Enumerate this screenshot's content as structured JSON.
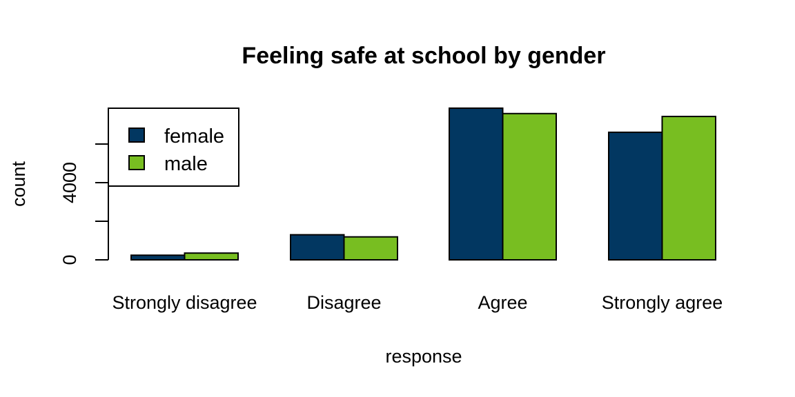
{
  "chart_data": {
    "type": "bar",
    "layout": "grouped",
    "title": "Feeling safe at school by gender",
    "xlabel": "response",
    "ylabel": "count",
    "categories": [
      "Strongly disagree",
      "Disagree",
      "Agree",
      "Strongly agree"
    ],
    "series": [
      {
        "name": "female",
        "color": "#023761",
        "values": [
          240,
          1300,
          7860,
          6610
        ]
      },
      {
        "name": "male",
        "color": "#78BE21",
        "values": [
          350,
          1190,
          7580,
          7430
        ]
      }
    ],
    "yticks": [
      0,
      2000,
      4000,
      6000
    ],
    "ytick_labels": [
      "0",
      "",
      "4000",
      ""
    ],
    "ylim": [
      0,
      8000
    ],
    "grid": false,
    "legend": {
      "placement": "top-left",
      "entries": [
        "female",
        "male"
      ]
    }
  }
}
